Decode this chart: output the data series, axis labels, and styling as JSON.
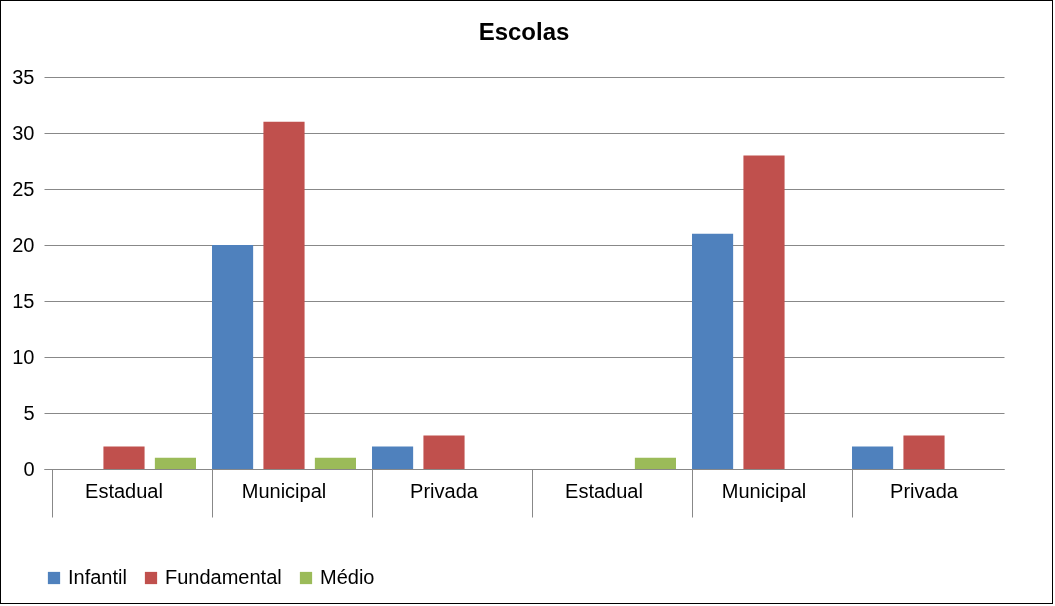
{
  "chart_data": {
    "type": "bar",
    "title": "Escolas",
    "categories": [
      "Estadual",
      "Municipal",
      "Privada",
      "Estadual",
      "Municipal",
      "Privada"
    ],
    "series": [
      {
        "name": "Infantil",
        "color": "#4f81bd",
        "values": [
          0,
          20,
          2,
          0,
          21,
          2
        ]
      },
      {
        "name": "Fundamental",
        "color": "#c0504d",
        "values": [
          2,
          31,
          3,
          0,
          28,
          3
        ]
      },
      {
        "name": "Médio",
        "color": "#9bbb59",
        "values": [
          1,
          1,
          0,
          1,
          0,
          0
        ]
      }
    ],
    "ylim": [
      0,
      35
    ],
    "yticks": [
      0,
      5,
      10,
      15,
      20,
      25,
      30,
      35
    ],
    "grid": "y",
    "legend": "bottom"
  }
}
